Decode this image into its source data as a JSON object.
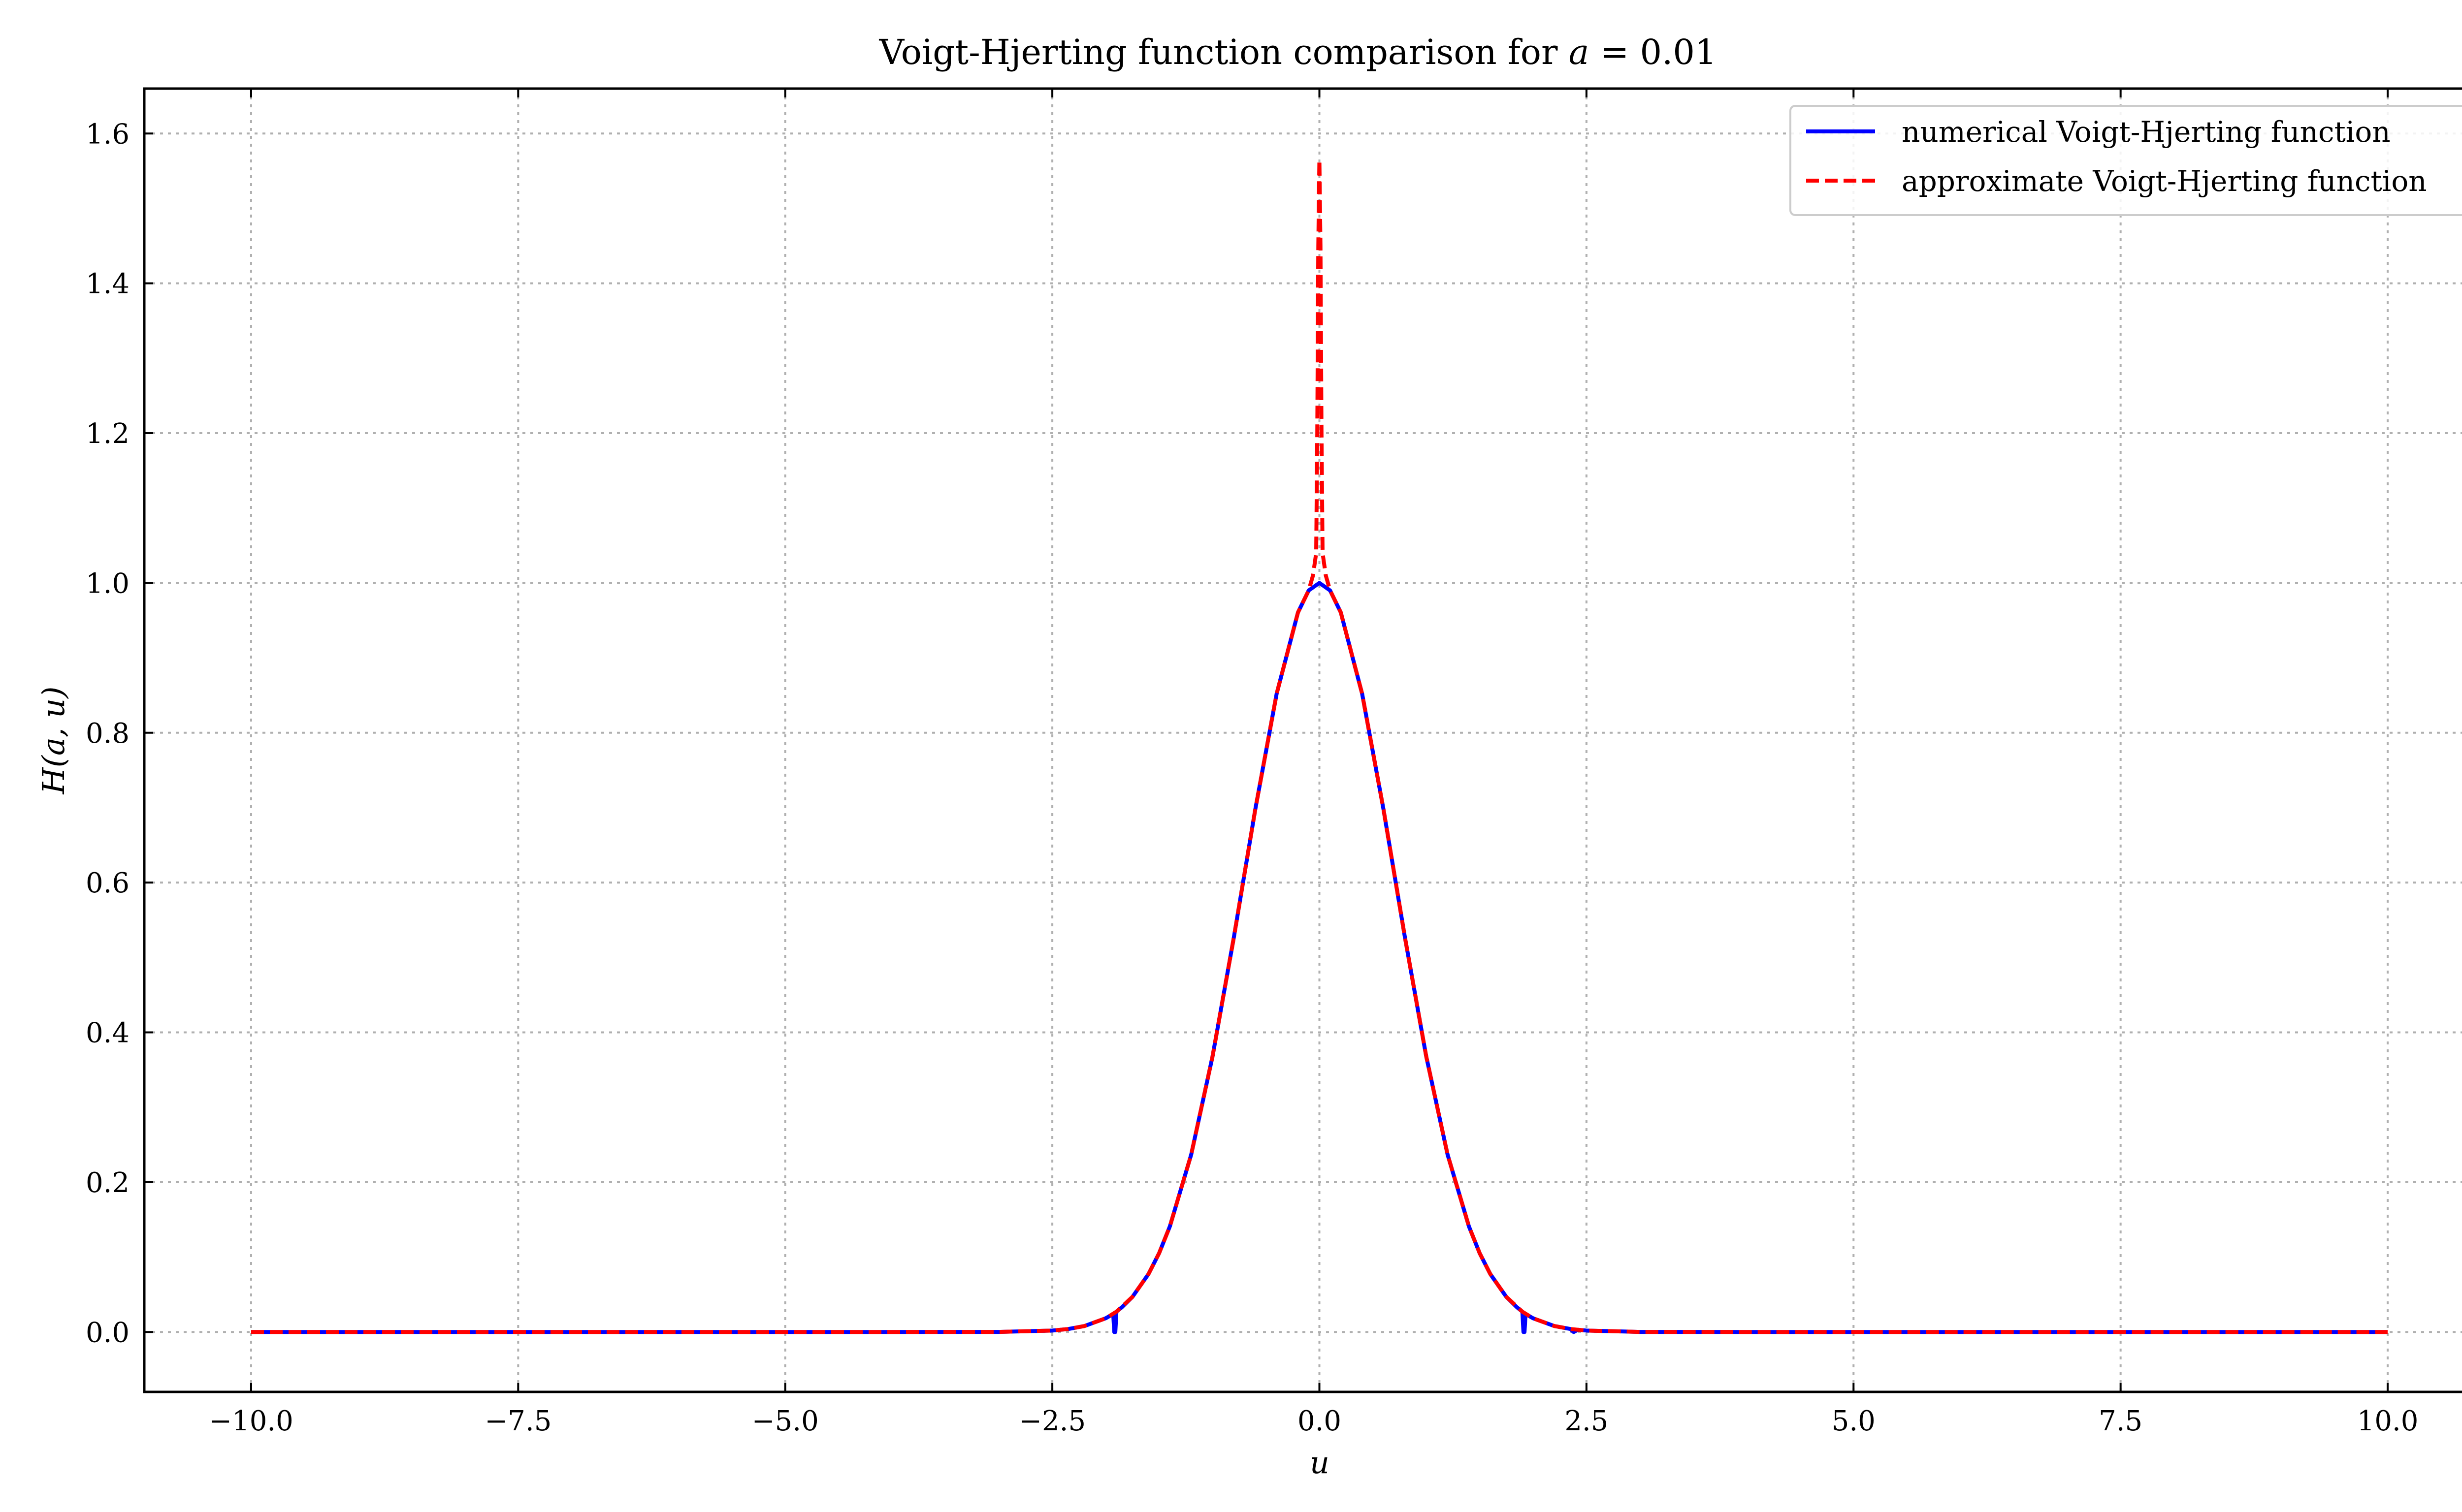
{
  "chart_data": {
    "type": "line",
    "title_prefix": "Voigt-Hjerting function comparison for ",
    "title_var": "a",
    "title_suffix": " = 0.01",
    "xlabel": "u",
    "ylabel": "H(a, u)",
    "xlim": [
      -11.0,
      11.0
    ],
    "ylim": [
      -0.08,
      1.66
    ],
    "xticks": [
      -10.0,
      -7.5,
      -5.0,
      -2.5,
      0.0,
      2.5,
      5.0,
      7.5,
      10.0
    ],
    "xtick_labels": [
      "−10.0",
      "−7.5",
      "−5.0",
      "−2.5",
      "0.0",
      "2.5",
      "5.0",
      "7.5",
      "10.0"
    ],
    "yticks": [
      0.0,
      0.2,
      0.4,
      0.6,
      0.8,
      1.0,
      1.2,
      1.4,
      1.6
    ],
    "ytick_labels": [
      "0.0",
      "0.2",
      "0.4",
      "0.6",
      "0.8",
      "1.0",
      "1.2",
      "1.4",
      "1.6"
    ],
    "grid": true,
    "legend_position": "top-right",
    "series": [
      {
        "name": "numerical Voigt-Hjerting function",
        "color": "#0000ff",
        "style": "solid",
        "x": [
          -10.0,
          -5.0,
          -3.0,
          -2.5,
          -2.35,
          -2.2,
          -2.0,
          -1.93,
          -1.92,
          -1.91,
          -1.9,
          -1.85,
          -1.75,
          -1.6,
          -1.5,
          -1.4,
          -1.2,
          -1.0,
          -0.8,
          -0.6,
          -0.4,
          -0.2,
          -0.1,
          0.0,
          0.1,
          0.2,
          0.4,
          0.6,
          0.8,
          1.0,
          1.2,
          1.4,
          1.5,
          1.6,
          1.75,
          1.85,
          1.9,
          1.91,
          1.92,
          1.93,
          2.0,
          2.2,
          2.35,
          2.38,
          2.42,
          2.5,
          3.0,
          5.0,
          10.0
        ],
        "y": [
          0.0,
          0.0,
          0.0001,
          0.0019,
          0.004,
          0.0079,
          0.0183,
          0.024,
          0.0,
          0.0,
          0.0271,
          0.0328,
          0.0468,
          0.0773,
          0.1054,
          0.1409,
          0.2369,
          0.3679,
          0.5273,
          0.6977,
          0.8521,
          0.9608,
          0.99,
          1.0,
          0.99,
          0.9608,
          0.8521,
          0.6977,
          0.5273,
          0.3679,
          0.2369,
          0.1409,
          0.1054,
          0.0773,
          0.0468,
          0.0328,
          0.0271,
          0.0,
          0.0,
          0.024,
          0.0183,
          0.0079,
          0.004,
          0.0,
          0.003,
          0.0019,
          0.0001,
          0.0,
          0.0
        ]
      },
      {
        "name": "approximate Voigt-Hjerting function",
        "color": "#ff0000",
        "style": "dashed",
        "x": [
          -10.0,
          -5.0,
          -3.0,
          -2.5,
          -2.35,
          -2.2,
          -2.0,
          -1.9,
          -1.75,
          -1.6,
          -1.5,
          -1.4,
          -1.2,
          -1.0,
          -0.8,
          -0.6,
          -0.4,
          -0.2,
          -0.1,
          -0.06,
          -0.03,
          -0.02,
          -0.01,
          0.0,
          0.01,
          0.02,
          0.03,
          0.06,
          0.1,
          0.2,
          0.4,
          0.6,
          0.8,
          1.0,
          1.2,
          1.4,
          1.5,
          1.6,
          1.75,
          1.9,
          2.0,
          2.2,
          2.35,
          2.5,
          3.0,
          5.0,
          10.0
        ],
        "y": [
          0.0,
          0.0,
          0.0001,
          0.0019,
          0.004,
          0.0079,
          0.0183,
          0.0271,
          0.0468,
          0.0773,
          0.1054,
          0.1409,
          0.2369,
          0.3679,
          0.5273,
          0.6977,
          0.8521,
          0.9608,
          0.99,
          1.01,
          1.04,
          1.2,
          1.45,
          1.565,
          1.45,
          1.2,
          1.04,
          1.01,
          0.99,
          0.9608,
          0.8521,
          0.6977,
          0.5273,
          0.3679,
          0.2369,
          0.1409,
          0.1054,
          0.0773,
          0.0468,
          0.0271,
          0.0183,
          0.0079,
          0.004,
          0.0019,
          0.0001,
          0.0,
          0.0
        ]
      }
    ]
  }
}
